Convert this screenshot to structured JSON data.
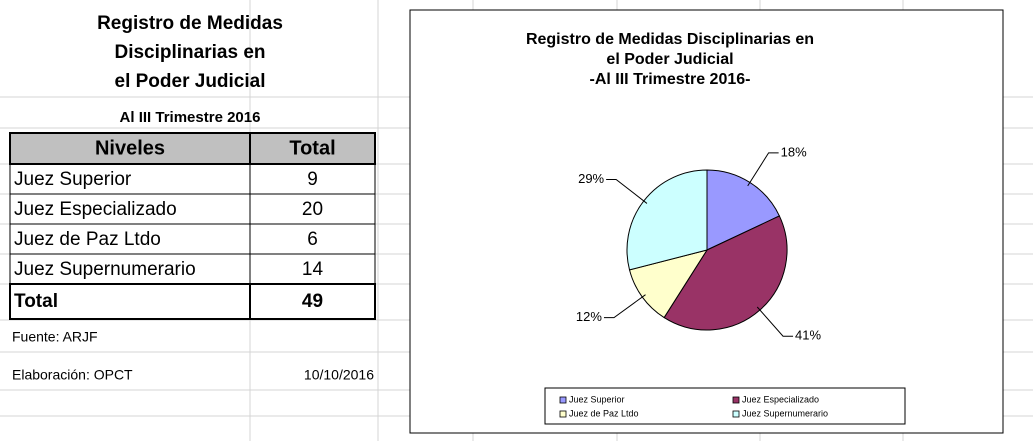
{
  "header": {
    "title_lines": [
      "Registro de Medidas",
      "Disciplinarias en",
      "el Poder Judicial"
    ],
    "subtitle": "Al III Trimestre 2016"
  },
  "table": {
    "columns": [
      "Niveles",
      "Total"
    ],
    "rows": [
      [
        "Juez Superior",
        "9"
      ],
      [
        "Juez Especializado",
        "20"
      ],
      [
        "Juez de Paz Ltdo",
        "6"
      ],
      [
        "Juez Supernumerario",
        "14"
      ]
    ],
    "total": [
      "Total",
      "49"
    ]
  },
  "footer": {
    "source": "Fuente: ARJF",
    "elaboration": "Elaboración: OPCT",
    "date": "10/10/2016"
  },
  "chart_data": {
    "type": "pie",
    "title": [
      "Registro de Medidas Disciplinarias en",
      "el Poder Judicial",
      "-Al III Trimestre 2016-"
    ],
    "categories": [
      "Juez Superior",
      "Juez Especializado",
      "Juez de Paz Ltdo",
      "Juez Supernumerario"
    ],
    "values": [
      18,
      41,
      12,
      29
    ],
    "value_labels": [
      "18%",
      "41%",
      "12%",
      "29%"
    ],
    "colors": [
      "#9999ff",
      "#993366",
      "#ffffcc",
      "#ccffff"
    ],
    "legend": "bottom"
  }
}
